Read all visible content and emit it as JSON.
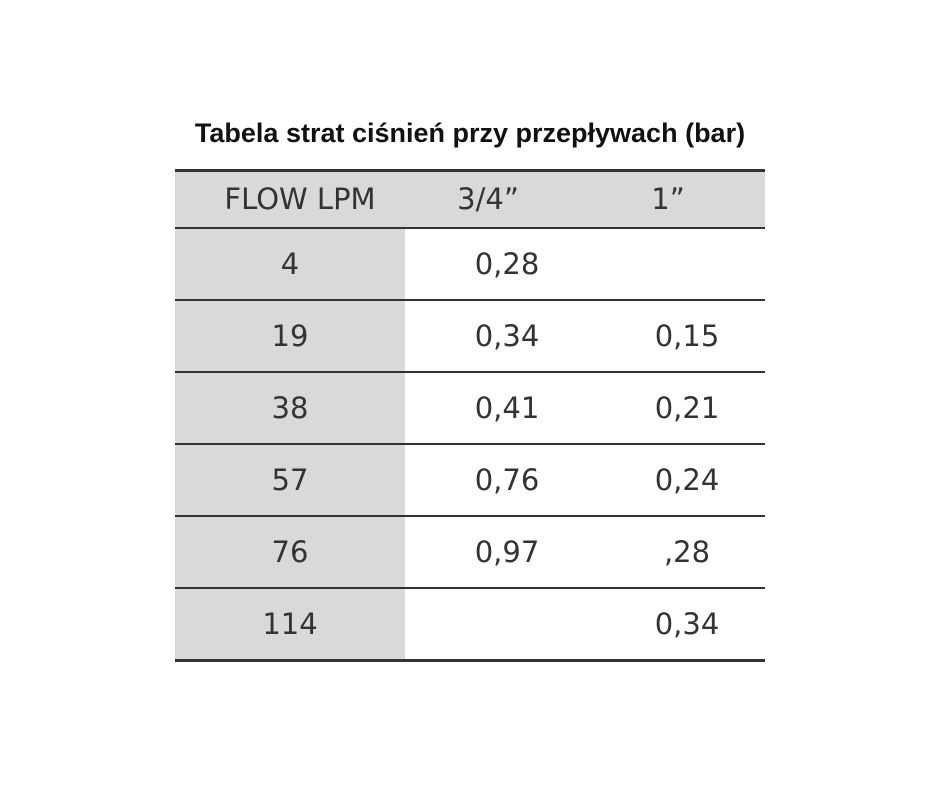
{
  "title": "Tabela strat ciśnień przy przepływach (bar)",
  "table": {
    "header": [
      "FLOW LPM",
      "3/4”",
      "1”"
    ],
    "rows": [
      [
        "4",
        "0,28",
        null
      ],
      [
        "19",
        "0,34",
        "0,15"
      ],
      [
        "38",
        "0,41",
        "0,21"
      ],
      [
        "57",
        "0,76",
        "0,24"
      ],
      [
        "76",
        "0,97",
        ",28"
      ],
      [
        "114",
        null,
        "0,34"
      ]
    ]
  }
}
